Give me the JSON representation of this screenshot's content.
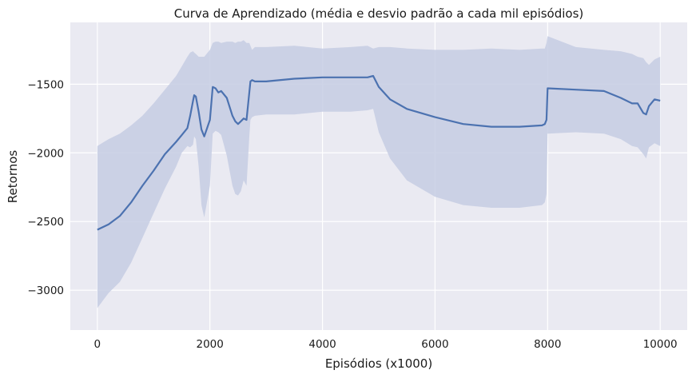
{
  "chart_data": {
    "type": "line",
    "title": "Curva de Aprendizado (média e desvio padrão a cada mil episódios)",
    "xlabel": "Episódios (x1000)",
    "ylabel": "Retornos",
    "xlim": [
      -480,
      10480
    ],
    "ylim": [
      -3290,
      -1050
    ],
    "xticks": [
      0,
      2000,
      4000,
      6000,
      8000,
      10000
    ],
    "xtick_labels": [
      "0",
      "2000",
      "4000",
      "6000",
      "8000",
      "10000"
    ],
    "yticks": [
      -3000,
      -2500,
      -2000,
      -1500
    ],
    "ytick_labels": [
      "−3000",
      "−2500",
      "−2000",
      "−1500"
    ],
    "grid": true,
    "colors": {
      "background": "#eaeaf2",
      "grid": "#ffffff",
      "line": "#4c72b0",
      "band": "#c5cde3"
    },
    "series": [
      {
        "x": [
          0,
          200,
          400,
          600,
          800,
          1000,
          1200,
          1400,
          1500,
          1600,
          1650,
          1700,
          1720,
          1750,
          1800,
          1850,
          1900,
          2000,
          2050,
          2100,
          2150,
          2200,
          2300,
          2400,
          2450,
          2500,
          2550,
          2600,
          2650,
          2700,
          2720,
          2750,
          2800,
          3000,
          3500,
          4000,
          4500,
          4800,
          4900,
          5000,
          5200,
          5500,
          6000,
          6500,
          7000,
          7500,
          7900,
          7950,
          7980,
          8000,
          8500,
          9000,
          9300,
          9500,
          9600,
          9700,
          9750,
          9800,
          9900,
          10000
        ],
        "mean": [
          -2560,
          -2520,
          -2460,
          -2360,
          -2240,
          -2130,
          -2010,
          -1920,
          -1870,
          -1820,
          -1730,
          -1620,
          -1580,
          -1590,
          -1700,
          -1830,
          -1880,
          -1760,
          -1520,
          -1530,
          -1560,
          -1550,
          -1600,
          -1730,
          -1770,
          -1790,
          -1770,
          -1750,
          -1760,
          -1560,
          -1480,
          -1470,
          -1480,
          -1480,
          -1460,
          -1450,
          -1450,
          -1450,
          -1440,
          -1520,
          -1610,
          -1680,
          -1740,
          -1790,
          -1810,
          -1810,
          -1800,
          -1790,
          -1760,
          -1530,
          -1540,
          -1550,
          -1600,
          -1640,
          -1640,
          -1710,
          -1720,
          -1660,
          -1610,
          -1620
        ],
        "upper": [
          -1950,
          -1900,
          -1860,
          -1800,
          -1730,
          -1640,
          -1540,
          -1440,
          -1370,
          -1300,
          -1270,
          -1260,
          -1270,
          -1280,
          -1300,
          -1300,
          -1300,
          -1250,
          -1200,
          -1190,
          -1190,
          -1200,
          -1190,
          -1190,
          -1200,
          -1190,
          -1190,
          -1180,
          -1200,
          -1200,
          -1220,
          -1250,
          -1230,
          -1230,
          -1220,
          -1240,
          -1230,
          -1220,
          -1240,
          -1230,
          -1230,
          -1240,
          -1250,
          -1250,
          -1240,
          -1250,
          -1240,
          -1240,
          -1200,
          -1150,
          -1230,
          -1250,
          -1260,
          -1280,
          -1300,
          -1310,
          -1340,
          -1360,
          -1320,
          -1300
        ],
        "lower": [
          -3130,
          -3020,
          -2940,
          -2800,
          -2620,
          -2440,
          -2260,
          -2100,
          -2000,
          -1950,
          -1960,
          -1940,
          -1880,
          -1900,
          -2100,
          -2380,
          -2470,
          -2240,
          -1860,
          -1840,
          -1850,
          -1870,
          -2020,
          -2240,
          -2300,
          -2310,
          -2280,
          -2200,
          -2240,
          -1880,
          -1760,
          -1740,
          -1730,
          -1720,
          -1720,
          -1700,
          -1700,
          -1690,
          -1680,
          -1850,
          -2040,
          -2200,
          -2320,
          -2380,
          -2400,
          -2400,
          -2380,
          -2360,
          -2300,
          -1860,
          -1850,
          -1860,
          -1900,
          -1950,
          -1960,
          -2010,
          -2040,
          -1960,
          -1930,
          -1950
        ]
      }
    ]
  }
}
